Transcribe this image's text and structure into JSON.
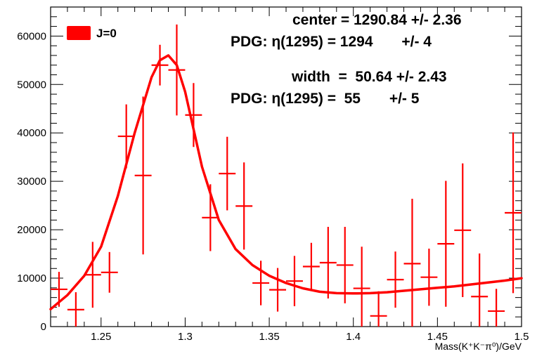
{
  "chart_data": {
    "type": "scatter",
    "xlabel": "Mass(K⁺K⁻π⁰)/GeV",
    "ylabel": "",
    "xlim": [
      1.22,
      1.5
    ],
    "ylim": [
      0,
      66000
    ],
    "x_ticks": [
      1.25,
      1.3,
      1.35,
      1.4,
      1.45,
      1.5
    ],
    "x_tick_labels": [
      "1.25",
      "1.3",
      "1.35",
      "1.4",
      "1.45",
      "1.5"
    ],
    "y_ticks": [
      0,
      10000,
      20000,
      30000,
      40000,
      50000,
      60000
    ],
    "y_tick_labels": [
      "0",
      "10000",
      "20000",
      "30000",
      "40000",
      "50000",
      "60000"
    ],
    "grid": false,
    "color": "#ff0000",
    "legend": {
      "position": "top-left",
      "entries": [
        {
          "label": "J=0",
          "color": "#ff0000"
        }
      ]
    },
    "annotations": [
      {
        "text": "center = 1290.84 +/- 2.36"
      },
      {
        "text": "PDG: η(1295) = 1294       +/- 4"
      },
      {
        "text": "width  =  50.64 +/- 2.43"
      },
      {
        "text": "PDG: η(1295) =  55       +/- 5"
      }
    ],
    "series": [
      {
        "name": "J=0",
        "kind": "points_with_errors",
        "x_half_width": 0.005,
        "points": [
          {
            "x": 1.225,
            "y": 7700,
            "yerr": 3600
          },
          {
            "x": 1.235,
            "y": 3500,
            "yerr": 3600
          },
          {
            "x": 1.245,
            "y": 10700,
            "yerr": 6800
          },
          {
            "x": 1.255,
            "y": 11200,
            "yerr": 4200
          },
          {
            "x": 1.265,
            "y": 39300,
            "yerr": 6600
          },
          {
            "x": 1.275,
            "y": 31200,
            "yerr": 16300
          },
          {
            "x": 1.285,
            "y": 54000,
            "yerr": 4200
          },
          {
            "x": 1.295,
            "y": 53000,
            "yerr": 9400
          },
          {
            "x": 1.305,
            "y": 43700,
            "yerr": 6600
          },
          {
            "x": 1.315,
            "y": 22500,
            "yerr": 6900
          },
          {
            "x": 1.325,
            "y": 31600,
            "yerr": 7600
          },
          {
            "x": 1.335,
            "y": 24900,
            "yerr": 9000
          },
          {
            "x": 1.345,
            "y": 9000,
            "yerr": 4600
          },
          {
            "x": 1.355,
            "y": 7600,
            "yerr": 4500
          },
          {
            "x": 1.365,
            "y": 9400,
            "yerr": 5200
          },
          {
            "x": 1.375,
            "y": 12400,
            "yerr": 4900
          },
          {
            "x": 1.385,
            "y": 13200,
            "yerr": 7400
          },
          {
            "x": 1.395,
            "y": 12700,
            "yerr": 7900
          },
          {
            "x": 1.405,
            "y": 7900,
            "yerr": 8600
          },
          {
            "x": 1.415,
            "y": 2200,
            "yerr": 5100
          },
          {
            "x": 1.425,
            "y": 9700,
            "yerr": 5800
          },
          {
            "x": 1.435,
            "y": 13000,
            "yerr": 13400
          },
          {
            "x": 1.445,
            "y": 10200,
            "yerr": 5900
          },
          {
            "x": 1.455,
            "y": 17100,
            "yerr": 13000
          },
          {
            "x": 1.465,
            "y": 19900,
            "yerr": 13800
          },
          {
            "x": 1.475,
            "y": 6200,
            "yerr": 8900
          },
          {
            "x": 1.485,
            "y": 3200,
            "yerr": 4600
          },
          {
            "x": 1.495,
            "y": 23500,
            "yerr": 16600
          }
        ]
      },
      {
        "name": "fit",
        "kind": "line",
        "x": [
          1.22,
          1.23,
          1.24,
          1.25,
          1.26,
          1.27,
          1.28,
          1.285,
          1.29,
          1.295,
          1.3,
          1.31,
          1.32,
          1.33,
          1.34,
          1.35,
          1.36,
          1.37,
          1.38,
          1.39,
          1.4,
          1.41,
          1.42,
          1.43,
          1.44,
          1.45,
          1.46,
          1.47,
          1.48,
          1.49,
          1.5
        ],
        "y": [
          3600,
          6500,
          10500,
          16500,
          27000,
          40000,
          51500,
          55000,
          56000,
          54000,
          48500,
          33000,
          22000,
          16000,
          12700,
          10500,
          9000,
          7900,
          7200,
          6900,
          6850,
          6900,
          7100,
          7400,
          7700,
          8000,
          8300,
          8700,
          9100,
          9500,
          10000
        ]
      }
    ]
  }
}
